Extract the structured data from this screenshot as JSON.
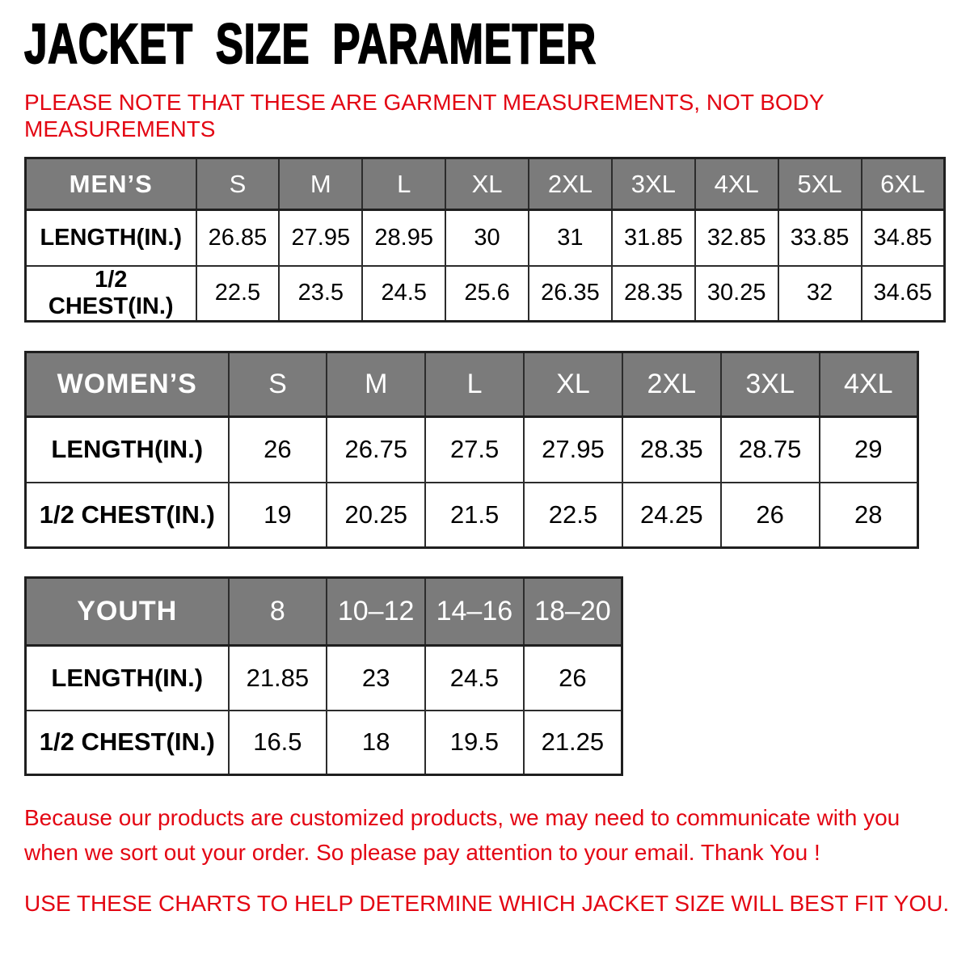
{
  "title": "JACKET SIZE PARAMETER",
  "note_lines": [
    "PLEASE NOTE THAT THESE ARE GARMENT MEASUREMENTS, NOT BODY",
    "MEASUREMENTS"
  ],
  "tables": [
    {
      "name": "MEN’S",
      "sizes": [
        "S",
        "M",
        "L",
        "XL",
        "2XL",
        "3XL",
        "4XL",
        "5XL",
        "6XL"
      ],
      "rows": [
        {
          "label": "LENGTH(IN.)",
          "values": [
            "26.85",
            "27.95",
            "28.95",
            "30",
            "31",
            "31.85",
            "32.85",
            "33.85",
            "34.85"
          ]
        },
        {
          "label": "1/2 CHEST(IN.)",
          "values": [
            "22.5",
            "23.5",
            "24.5",
            "25.6",
            "26.35",
            "28.35",
            "30.25",
            "32",
            "34.65"
          ]
        }
      ]
    },
    {
      "name": "WOMEN’S",
      "sizes": [
        "S",
        "M",
        "L",
        "XL",
        "2XL",
        "3XL",
        "4XL"
      ],
      "rows": [
        {
          "label": "LENGTH(IN.)",
          "values": [
            "26",
            "26.75",
            "27.5",
            "27.95",
            "28.35",
            "28.75",
            "29"
          ]
        },
        {
          "label": "1/2 CHEST(IN.)",
          "values": [
            "19",
            "20.25",
            "21.5",
            "22.5",
            "24.25",
            "26",
            "28"
          ]
        }
      ]
    },
    {
      "name": "YOUTH",
      "sizes": [
        "8",
        "10–12",
        "14–16",
        "18–20"
      ],
      "rows": [
        {
          "label": "LENGTH(IN.)",
          "values": [
            "21.85",
            "23",
            "24.5",
            "26"
          ]
        },
        {
          "label": "1/2 CHEST(IN.)",
          "values": [
            "16.5",
            "18",
            "19.5",
            "21.25"
          ]
        }
      ]
    }
  ],
  "footer": {
    "para1_lines": [
      "Because our products are customized products, we may need to communicate with you",
      "when we sort out your order. So please pay attention to your email. Thank You !"
    ],
    "para2": "USE THESE CHARTS TO HELP DETERMINE WHICH JACKET SIZE WILL BEST FIT YOU."
  },
  "colors": {
    "accent_red": "#e30613",
    "header_gray": "#7b7b7b",
    "table_border": "#1f1f1f",
    "text_black": "#000000",
    "background": "#ffffff"
  }
}
